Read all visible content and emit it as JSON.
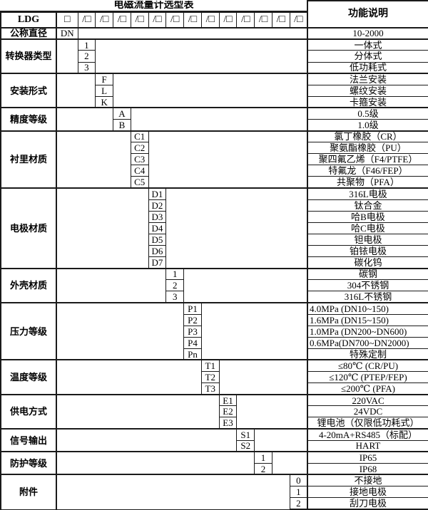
{
  "colors": {
    "border": "#1a1a1a",
    "background": "#ffffff",
    "text": "#000000"
  },
  "header": {
    "title": "电磁流量计选型表",
    "desc_header": "功能说明"
  },
  "model_row": {
    "label": "LDG",
    "boxes": [
      "□",
      "/□",
      "/□",
      "/□",
      "/□",
      "/□",
      "/□",
      "/□",
      "/□",
      "/□",
      "/□",
      "/□",
      "/□",
      "/□"
    ]
  },
  "groups": [
    {
      "label": "公称直径",
      "col": 0,
      "options": [
        {
          "code": "DN",
          "desc": "10-2000"
        }
      ]
    },
    {
      "label": "转换器类型",
      "col": 1,
      "options": [
        {
          "code": "1",
          "desc": "一体式"
        },
        {
          "code": "2",
          "desc": "分体式"
        },
        {
          "code": "3",
          "desc": "低功耗式"
        }
      ]
    },
    {
      "label": "安装形式",
      "col": 2,
      "options": [
        {
          "code": "F",
          "desc": "法兰安装"
        },
        {
          "code": "L",
          "desc": "螺纹安装"
        },
        {
          "code": "K",
          "desc": "卡箍安装"
        }
      ]
    },
    {
      "label": "精度等级",
      "col": 3,
      "options": [
        {
          "code": "A",
          "desc": "0.5级"
        },
        {
          "code": "B",
          "desc": "1.0级"
        }
      ]
    },
    {
      "label": "衬里材质",
      "col": 4,
      "options": [
        {
          "code": "C1",
          "desc": "氯丁橡胶（CR）"
        },
        {
          "code": "C2",
          "desc": "聚氨酯橡胶（PU）"
        },
        {
          "code": "C3",
          "desc": "聚四氟乙烯（F4/PTFE）"
        },
        {
          "code": "C4",
          "desc": "特氟龙（F46/FEP）"
        },
        {
          "code": "C5",
          "desc": "共聚物（PFA）"
        }
      ]
    },
    {
      "label": "电极材质",
      "col": 5,
      "options": [
        {
          "code": "D1",
          "desc": "316L电极"
        },
        {
          "code": "D2",
          "desc": "钛合金"
        },
        {
          "code": "D3",
          "desc": "哈B电极"
        },
        {
          "code": "D4",
          "desc": "哈C电极"
        },
        {
          "code": "D5",
          "desc": "钽电极"
        },
        {
          "code": "D6",
          "desc": "铂铱电极"
        },
        {
          "code": "D7",
          "desc": "碳化钨"
        }
      ]
    },
    {
      "label": "外壳材质",
      "col": 6,
      "options": [
        {
          "code": "1",
          "desc": "碳钢"
        },
        {
          "code": "2",
          "desc": "304不锈钢"
        },
        {
          "code": "3",
          "desc": "316L不锈钢"
        }
      ]
    },
    {
      "label": "压力等级",
      "col": 7,
      "options": [
        {
          "code": "P1",
          "desc": "4.0MPa (DN10~150)",
          "align": "left"
        },
        {
          "code": "P2",
          "desc": "1.6MPa (DN15~150)",
          "align": "left"
        },
        {
          "code": "P3",
          "desc": "1.0MPa (DN200~DN600)",
          "align": "left"
        },
        {
          "code": "P4",
          "desc": "0.6MPa(DN700~DN2000)",
          "align": "left"
        },
        {
          "code": "Pn",
          "desc": "特殊定制"
        }
      ]
    },
    {
      "label": "温度等级",
      "col": 8,
      "options": [
        {
          "code": "T1",
          "desc": "≤80℃ (CR/PU)"
        },
        {
          "code": "T2",
          "desc": "≤120℃ (PTEP/FEP)"
        },
        {
          "code": "T3",
          "desc": "≤200℃ (PFA)"
        }
      ]
    },
    {
      "label": "供电方式",
      "col": 9,
      "options": [
        {
          "code": "E1",
          "desc": "220VAC"
        },
        {
          "code": "E2",
          "desc": "24VDC"
        },
        {
          "code": "E3",
          "desc": "锂电池（仅限低功耗式）"
        }
      ]
    },
    {
      "label": "信号输出",
      "col": 10,
      "options": [
        {
          "code": "S1",
          "desc": "4-20mA+RS485（标配）"
        },
        {
          "code": "S2",
          "desc": "HART"
        }
      ]
    },
    {
      "label": "防护等级",
      "col": 11,
      "options": [
        {
          "code": "1",
          "desc": "IP65"
        },
        {
          "code": "2",
          "desc": "IP68"
        }
      ]
    },
    {
      "label": "附件",
      "col": 13,
      "options": [
        {
          "code": "0",
          "desc": "不接地"
        },
        {
          "code": "1",
          "desc": "接地电极"
        },
        {
          "code": "2",
          "desc": "刮刀电极"
        }
      ]
    }
  ]
}
